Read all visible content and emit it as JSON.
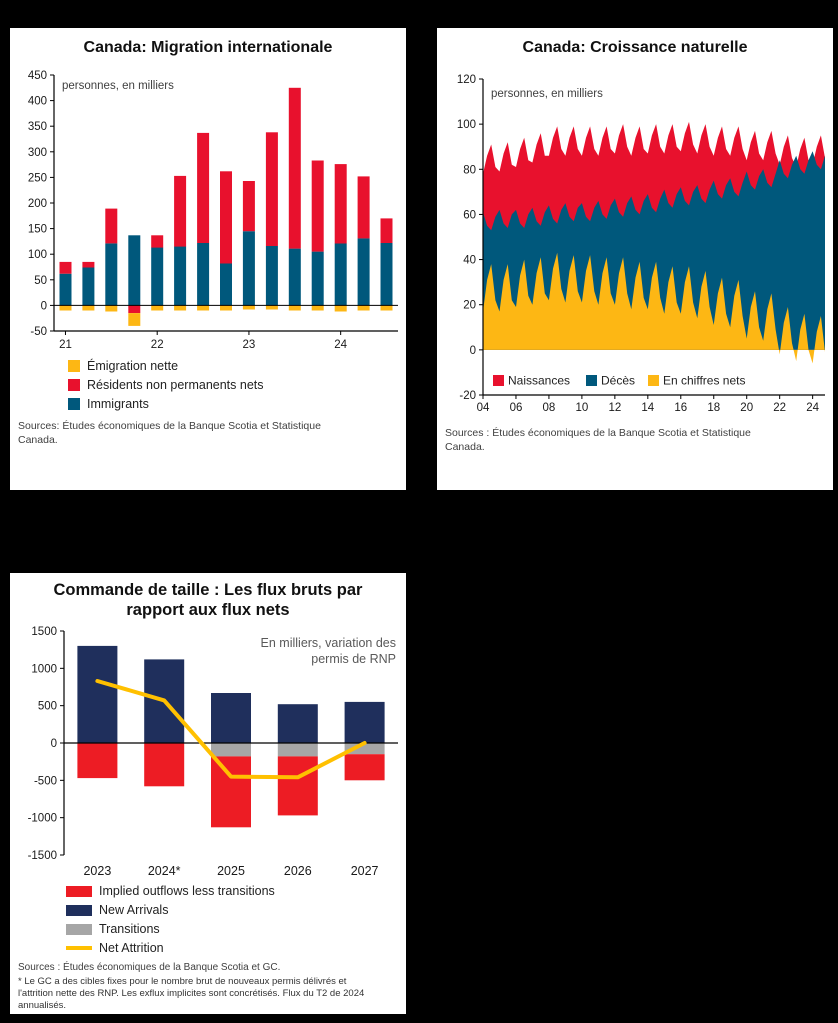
{
  "background": "#000000",
  "chart_data": [
    {
      "id": "migration",
      "type": "bar",
      "stacked": true,
      "title": "Canada: Migration internationale",
      "unit_label": "personnes, en milliers",
      "ylim": [
        -50,
        450
      ],
      "ytick_step": 50,
      "categories": [
        "2021T1",
        "2021T2",
        "2021T3",
        "2021T4",
        "2022T1",
        "2022T2",
        "2022T3",
        "2022T4",
        "2023T1",
        "2023T2",
        "2023T3",
        "2023T4",
        "2024T1",
        "2024T2",
        "2024T3"
      ],
      "x_labels": [
        "21",
        "22",
        "23",
        "24"
      ],
      "x_tick_indices": [
        0,
        4,
        8,
        12
      ],
      "series": [
        {
          "name": "Immigrants",
          "color": "#00587c",
          "values": [
            62,
            74,
            121,
            137,
            113,
            115,
            122,
            82,
            145,
            116,
            111,
            105,
            121,
            131,
            122
          ]
        },
        {
          "name": "Résidents non permanents nets",
          "color": "#e8112d",
          "values": [
            23,
            11,
            68,
            -15,
            24,
            138,
            215,
            180,
            98,
            222,
            314,
            178,
            155,
            121,
            48
          ]
        },
        {
          "name": "Émigration nette",
          "color": "#fdb714",
          "values": [
            -10,
            -10,
            -12,
            -25,
            -10,
            -10,
            -10,
            -10,
            -8,
            -8,
            -10,
            -10,
            -12,
            -10,
            -10
          ]
        }
      ],
      "legend": [
        {
          "label": "Émigration nette",
          "color": "#fdb714"
        },
        {
          "label": "Résidents non permanents nets",
          "color": "#e8112d"
        },
        {
          "label": "Immigrants",
          "color": "#00587c"
        }
      ],
      "source": "Sources: Études économiques de la Banque Scotia et Statistique Canada."
    },
    {
      "id": "natural-growth",
      "type": "area",
      "title": "Canada: Croissance naturelle",
      "unit_label": "personnes, en milliers",
      "ylim": [
        -20,
        120
      ],
      "ytick_step": 20,
      "x_start": 2004,
      "x_step": 0.25,
      "x_tick_years": [
        2004,
        2006,
        2008,
        2010,
        2012,
        2014,
        2016,
        2018,
        2020,
        2022,
        2024
      ],
      "x_tick_labels": [
        "04",
        "06",
        "08",
        "10",
        "12",
        "14",
        "16",
        "18",
        "20",
        "22",
        "24"
      ],
      "series": [
        {
          "name": "Naissances",
          "color": "#e8112d",
          "values": [
            78,
            86,
            91,
            81,
            79,
            87,
            92,
            82,
            81,
            89,
            94,
            84,
            83,
            91,
            96,
            86,
            86,
            94,
            99,
            89,
            86,
            94,
            99,
            89,
            86,
            94,
            99,
            89,
            86,
            94,
            99,
            89,
            87,
            95,
            100,
            90,
            86,
            94,
            99,
            89,
            87,
            95,
            100,
            90,
            87,
            95,
            100,
            90,
            88,
            96,
            101,
            91,
            87,
            95,
            100,
            90,
            86,
            94,
            99,
            89,
            86,
            94,
            99,
            89,
            84,
            92,
            97,
            87,
            84,
            92,
            97,
            87,
            82,
            90,
            95,
            85,
            81,
            89,
            94,
            84,
            82,
            90,
            95,
            85
          ]
        },
        {
          "name": "Décès",
          "color": "#00587c",
          "values": [
            61,
            55,
            53,
            59,
            62,
            56,
            54,
            60,
            62,
            56,
            54,
            60,
            63,
            57,
            55,
            61,
            64,
            58,
            56,
            62,
            65,
            59,
            57,
            63,
            65,
            59,
            57,
            63,
            66,
            60,
            58,
            64,
            67,
            61,
            59,
            65,
            68,
            62,
            60,
            66,
            69,
            63,
            61,
            67,
            71,
            65,
            63,
            69,
            72,
            66,
            64,
            70,
            73,
            67,
            65,
            71,
            75,
            69,
            67,
            73,
            76,
            70,
            68,
            74,
            79,
            73,
            71,
            77,
            80,
            74,
            72,
            78,
            84,
            78,
            76,
            82,
            86,
            80,
            78,
            84,
            88,
            82,
            80,
            86
          ]
        },
        {
          "name": "En chiffres nets",
          "color": "#fdb714",
          "values": [
            17,
            31,
            38,
            22,
            17,
            31,
            38,
            22,
            19,
            33,
            40,
            24,
            20,
            34,
            41,
            25,
            22,
            36,
            43,
            27,
            21,
            35,
            42,
            26,
            21,
            35,
            42,
            26,
            20,
            34,
            41,
            25,
            20,
            34,
            41,
            25,
            18,
            32,
            39,
            23,
            18,
            32,
            39,
            23,
            16,
            30,
            37,
            21,
            16,
            30,
            37,
            21,
            14,
            28,
            35,
            19,
            11,
            25,
            32,
            16,
            10,
            24,
            31,
            15,
            5,
            19,
            26,
            10,
            4,
            18,
            25,
            9,
            -2,
            12,
            19,
            3,
            -5,
            9,
            16,
            0,
            -6,
            8,
            15,
            -1
          ]
        }
      ],
      "legend": [
        {
          "label": "Naissances",
          "color": "#e8112d"
        },
        {
          "label": "Décès",
          "color": "#00587c"
        },
        {
          "label": "En chiffres nets",
          "color": "#fdb714"
        }
      ],
      "source": "Sources : Études économiques de la Banque Scotia et Statistique Canada."
    },
    {
      "id": "rnp-flows",
      "type": "bar",
      "stacked": true,
      "title": "Commande de taille : Les flux bruts par rapport aux flux nets",
      "annotation_lines": [
        "En milliers, variation des",
        "permis de RNP"
      ],
      "ylim": [
        -1500,
        1500
      ],
      "ytick_step": 500,
      "ytick_labels": [
        "1500",
        "1000",
        "500",
        "0",
        "-500",
        "-1000",
        "-1500"
      ],
      "categories": [
        "2023",
        "2024*",
        "2025",
        "2026",
        "2027"
      ],
      "series": [
        {
          "name": "New Arrivals",
          "color": "#1f2f5c",
          "values": [
            1300,
            1120,
            670,
            520,
            550
          ]
        },
        {
          "name": "Transitions",
          "color": "#a6a6a6",
          "values": [
            0,
            0,
            -180,
            -180,
            -150
          ]
        },
        {
          "name": "Implied outflows less transitions",
          "color": "#ed1c24",
          "values": [
            -470,
            -580,
            -950,
            -790,
            -350
          ]
        },
        {
          "name": "Net Attrition",
          "color": "#ffc000",
          "type": "line",
          "values": [
            830,
            570,
            -450,
            -460,
            0
          ]
        }
      ],
      "legend": [
        {
          "label": "Implied outflows less transitions",
          "color": "#ed1c24",
          "shape": "rect"
        },
        {
          "label": "New Arrivals",
          "color": "#1f2f5c",
          "shape": "rect"
        },
        {
          "label": "Transitions",
          "color": "#a6a6a6",
          "shape": "rect"
        },
        {
          "label": "Net Attrition",
          "color": "#ffc000",
          "shape": "line"
        }
      ],
      "source": "Sources : Études économiques de la Banque Scotia et GC.",
      "footnote": "* Le GC a des cibles fixes pour le nombre brut de nouveaux permis délivrés et l'attrition nette des RNP. Les exflux implicites sont concrétisés. Flux du T2 de 2024 annualisés."
    }
  ]
}
